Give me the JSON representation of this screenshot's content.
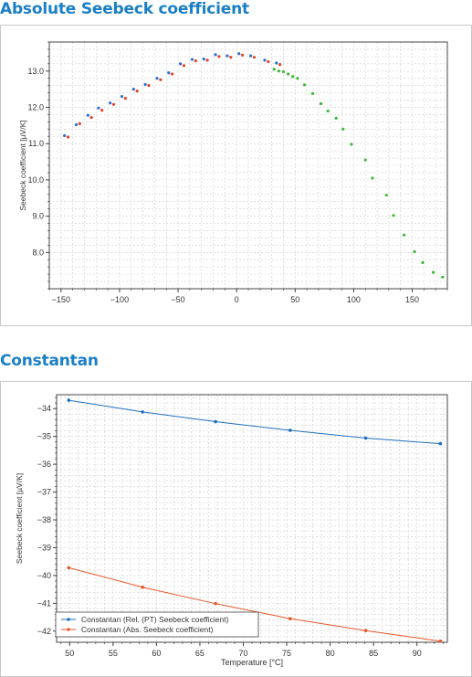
{
  "sections": {
    "seebeck_title": "Absolute Seebeck coefficient",
    "constantan_title": "Constantan"
  },
  "chart_data": [
    {
      "type": "scatter",
      "title": "",
      "xlabel": "",
      "ylabel": "Seebeck coefficient [µV/K]",
      "xlim": [
        -160,
        180
      ],
      "ylim": [
        7.0,
        13.8
      ],
      "xticks": [
        -150,
        -100,
        -50,
        0,
        50,
        100,
        150
      ],
      "yticks": [
        8.0,
        9.0,
        10.0,
        11.0,
        12.0,
        13.0
      ],
      "xtick_labels": [
        "−150",
        "−100",
        "−50",
        "0",
        "50",
        "100",
        "150"
      ],
      "ytick_labels": [
        "8.0",
        "9.0",
        "10.0",
        "11.0",
        "12.0",
        "13.0"
      ],
      "grid": true,
      "colors": [
        "#2e6fd0",
        "#e0452a",
        "#3fb83a"
      ],
      "series": [
        {
          "values": [
            [
              -147,
              11.22
            ],
            [
              -137,
              11.52
            ],
            [
              -127,
              11.78
            ],
            [
              -118,
              11.98
            ],
            [
              -108,
              12.12
            ],
            [
              -98,
              12.3
            ],
            [
              -88,
              12.5
            ],
            [
              -78,
              12.63
            ],
            [
              -68,
              12.8
            ],
            [
              -58,
              12.95
            ],
            [
              -48,
              13.2
            ],
            [
              -38,
              13.32
            ],
            [
              -28,
              13.33
            ],
            [
              -18,
              13.45
            ],
            [
              -8,
              13.42
            ],
            [
              2,
              13.48
            ],
            [
              12,
              13.42
            ],
            [
              24,
              13.3
            ],
            [
              34,
              13.22
            ]
          ]
        },
        {
          "values": [
            [
              -144,
              11.18
            ],
            [
              -134,
              11.55
            ],
            [
              -124,
              11.72
            ],
            [
              -115,
              11.92
            ],
            [
              -105,
              12.08
            ],
            [
              -95,
              12.25
            ],
            [
              -85,
              12.45
            ],
            [
              -75,
              12.6
            ],
            [
              -65,
              12.76
            ],
            [
              -55,
              12.92
            ],
            [
              -45,
              13.15
            ],
            [
              -35,
              13.28
            ],
            [
              -25,
              13.3
            ],
            [
              -15,
              13.4
            ],
            [
              -5,
              13.38
            ],
            [
              5,
              13.44
            ],
            [
              15,
              13.38
            ],
            [
              27,
              13.26
            ],
            [
              37,
              13.18
            ]
          ]
        },
        {
          "values": [
            [
              32,
              13.05
            ],
            [
              36,
              13.0
            ],
            [
              40,
              12.98
            ],
            [
              44,
              12.92
            ],
            [
              48,
              12.85
            ],
            [
              52,
              12.8
            ],
            [
              58,
              12.62
            ],
            [
              65,
              12.38
            ],
            [
              72,
              12.1
            ],
            [
              78,
              11.9
            ],
            [
              85,
              11.7
            ],
            [
              91,
              11.4
            ],
            [
              98,
              10.98
            ],
            [
              110,
              10.55
            ],
            [
              116,
              10.05
            ],
            [
              128,
              9.58
            ],
            [
              134,
              9.02
            ],
            [
              143,
              8.48
            ],
            [
              152,
              8.02
            ],
            [
              159,
              7.72
            ],
            [
              168,
              7.45
            ],
            [
              176,
              7.32
            ]
          ]
        }
      ]
    },
    {
      "type": "line",
      "title": "",
      "xlabel": "Temperature [°C]",
      "ylabel": "Seebeck coefficient [µV/K]",
      "xlim": [
        48.5,
        93.5
      ],
      "ylim": [
        -42.4,
        -33.5
      ],
      "xticks": [
        50,
        55,
        60,
        65,
        70,
        75,
        80,
        85,
        90
      ],
      "yticks": [
        -34,
        -35,
        -36,
        -37,
        -38,
        -39,
        -40,
        -41,
        -42
      ],
      "xtick_labels": [
        "50",
        "55",
        "60",
        "65",
        "70",
        "75",
        "80",
        "85",
        "90"
      ],
      "ytick_labels": [
        "−34",
        "−35",
        "−36",
        "−37",
        "−38",
        "−39",
        "−40",
        "−41",
        "−42"
      ],
      "grid": true,
      "legend_position": "bottom-left",
      "x": [
        49.9,
        58.4,
        66.8,
        75.4,
        84.1,
        92.7
      ],
      "series": [
        {
          "name": "Constantan (Rel. (PT) Seebeck coefficient)",
          "color": "#1f6fbf",
          "values": [
            -33.7,
            -34.12,
            -34.47,
            -34.78,
            -35.06,
            -35.26
          ]
        },
        {
          "name": "Constantan (Abs. Seebeck coefficient)",
          "color": "#e8572a",
          "values": [
            -39.72,
            -40.42,
            -41.01,
            -41.55,
            -41.98,
            -42.36
          ]
        }
      ]
    }
  ]
}
